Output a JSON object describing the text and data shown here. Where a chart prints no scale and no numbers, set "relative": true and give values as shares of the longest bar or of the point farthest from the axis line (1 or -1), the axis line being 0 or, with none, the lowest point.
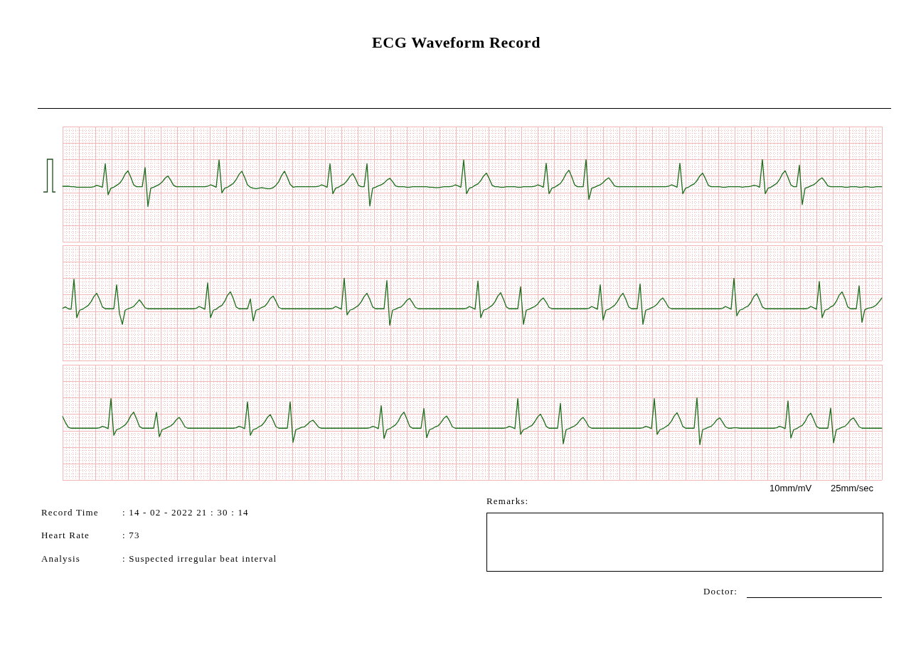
{
  "chart_data": [
    {
      "type": "line",
      "title": "ECG Waveform Record",
      "relative": true,
      "grid": true,
      "categories": [
        null,
        null,
        null,
        null,
        null,
        null,
        null,
        null,
        null,
        null,
        null,
        null,
        null,
        null,
        null,
        null,
        null,
        null,
        null,
        null,
        null,
        null,
        null,
        null,
        null,
        null,
        null,
        null,
        null,
        null,
        null,
        null,
        null,
        null,
        null,
        null,
        null,
        null,
        null,
        null,
        null,
        null,
        null,
        null,
        null,
        null,
        null,
        null,
        null,
        null,
        null,
        null,
        null,
        null,
        null,
        null,
        null,
        null,
        null,
        null,
        null,
        null,
        null,
        null,
        null,
        null,
        null,
        null,
        null,
        null,
        null,
        null,
        null,
        null,
        null,
        null,
        null,
        null,
        null,
        null,
        null,
        null,
        null,
        null,
        null,
        null,
        null,
        null,
        null,
        null,
        null,
        null,
        null,
        null,
        null,
        null,
        null,
        null,
        null,
        null,
        null,
        null,
        null,
        null,
        null,
        null,
        null,
        null,
        null,
        null,
        null,
        null,
        null,
        null,
        null,
        null,
        null,
        null,
        null,
        null,
        null,
        null,
        null,
        null,
        null,
        null,
        null,
        null,
        null,
        null,
        null,
        null,
        null,
        null,
        null,
        null,
        null,
        null,
        null,
        null,
        null,
        null,
        null,
        null,
        null,
        null,
        null,
        null,
        null,
        null,
        null,
        null,
        null,
        null,
        null,
        null,
        null,
        null,
        null,
        null,
        null,
        null,
        null,
        null,
        null,
        null,
        null,
        null,
        null,
        null,
        null,
        null,
        null,
        null,
        null,
        null,
        null,
        null,
        null,
        null,
        null,
        null,
        null,
        null,
        null,
        null,
        null,
        null,
        null,
        null,
        null,
        null,
        null,
        null,
        null,
        null,
        null,
        null,
        null,
        null,
        null,
        null,
        null,
        null,
        null,
        null,
        null,
        null,
        null,
        null,
        null,
        null,
        null,
        null,
        null,
        null,
        null,
        null,
        null,
        null,
        null,
        null,
        null,
        null,
        null,
        null,
        null,
        null,
        null,
        null,
        null,
        null,
        null,
        null,
        null,
        null,
        null,
        null,
        null,
        null,
        null,
        null,
        null,
        null,
        null,
        null,
        null,
        null,
        null,
        null,
        null,
        null,
        null,
        null,
        null,
        null,
        null,
        null,
        null,
        null,
        null,
        null,
        null,
        null,
        null,
        null,
        null,
        null,
        null,
        null,
        null,
        null,
        null,
        null,
        null,
        null,
        null,
        null,
        null,
        null,
        null,
        null,
        null,
        null,
        null,
        null,
        null,
        null,
        null
      ],
      "series": [
        {
          "color": "#1b6e1b",
          "values": [
            0.43,
            0.43,
            0.43,
            0.42,
            0.42,
            0.41,
            0.41,
            0.41,
            0.41,
            0.41,
            0.41,
            0.42,
            0.45,
            0.43,
            0.41,
            0.91,
            0.25,
            0.39,
            0.41,
            0.45,
            0.49,
            0.57,
            0.69,
            0.76,
            0.62,
            0.46,
            0.42,
            0.42,
            0.42,
            0.83,
            0.0,
            0.39,
            0.41,
            0.44,
            0.47,
            0.52,
            0.6,
            0.65,
            0.56,
            0.45,
            0.42,
            0.42,
            0.42,
            0.42,
            0.42,
            0.42,
            0.42,
            0.42,
            0.42,
            0.42,
            0.42,
            0.43,
            0.46,
            0.44,
            0.41,
            0.99,
            0.29,
            0.39,
            0.41,
            0.45,
            0.49,
            0.57,
            0.68,
            0.75,
            0.62,
            0.46,
            0.41,
            0.39,
            0.38,
            0.39,
            0.4,
            0.39,
            0.38,
            0.38,
            0.4,
            0.45,
            0.53,
            0.66,
            0.75,
            0.62,
            0.47,
            0.41,
            0.42,
            0.42,
            0.42,
            0.42,
            0.42,
            0.42,
            0.42,
            0.42,
            0.43,
            0.46,
            0.44,
            0.41,
            0.91,
            0.27,
            0.39,
            0.41,
            0.45,
            0.48,
            0.55,
            0.64,
            0.7,
            0.59,
            0.45,
            0.42,
            0.42,
            0.91,
            0.01,
            0.39,
            0.41,
            0.44,
            0.46,
            0.5,
            0.56,
            0.6,
            0.53,
            0.44,
            0.42,
            0.42,
            0.42,
            0.41,
            0.41,
            0.42,
            0.42,
            0.42,
            0.42,
            0.42,
            0.42,
            0.41,
            0.41,
            0.4,
            0.4,
            0.41,
            0.42,
            0.42,
            0.42,
            0.43,
            0.46,
            0.44,
            0.41,
            0.99,
            0.27,
            0.39,
            0.41,
            0.45,
            0.48,
            0.55,
            0.65,
            0.71,
            0.59,
            0.45,
            0.42,
            0.42,
            0.41,
            0.41,
            0.42,
            0.42,
            0.42,
            0.42,
            0.41,
            0.41,
            0.42,
            0.42,
            0.42,
            0.42,
            0.43,
            0.46,
            0.44,
            0.41,
            0.92,
            0.27,
            0.39,
            0.41,
            0.45,
            0.49,
            0.58,
            0.7,
            0.77,
            0.63,
            0.46,
            0.42,
            0.42,
            0.42,
            1.0,
            0.15,
            0.39,
            0.41,
            0.44,
            0.46,
            0.51,
            0.57,
            0.61,
            0.53,
            0.44,
            0.42,
            0.42,
            0.42,
            0.42,
            0.42,
            0.42,
            0.42,
            0.42,
            0.42,
            0.42,
            0.42,
            0.42,
            0.42,
            0.42,
            0.42,
            0.42,
            0.42,
            0.42,
            0.43,
            0.46,
            0.44,
            0.41,
            0.92,
            0.27,
            0.39,
            0.41,
            0.45,
            0.48,
            0.55,
            0.65,
            0.71,
            0.59,
            0.45,
            0.42,
            0.42,
            0.42,
            0.42,
            0.41,
            0.41,
            0.42,
            0.42,
            0.42,
            0.42,
            0.42,
            0.41,
            0.42,
            0.42,
            0.43,
            0.45,
            0.44,
            0.41,
            1.0,
            0.27,
            0.39,
            0.41,
            0.45,
            0.49,
            0.57,
            0.69,
            0.76,
            0.62,
            0.46,
            0.42,
            0.42,
            0.88,
            0.04,
            0.39,
            0.41,
            0.44,
            0.46,
            0.51,
            0.57,
            0.61,
            0.53,
            0.44,
            0.42,
            0.42,
            0.42,
            0.42,
            0.42,
            0.41,
            0.41,
            0.42,
            0.42,
            0.42,
            0.41,
            0.41,
            0.42,
            0.42,
            0.41,
            0.41,
            0.42,
            0.42,
            0.42
          ]
        }
      ]
    },
    {
      "type": "line",
      "relative": true,
      "grid": true,
      "categories": [
        null,
        null,
        null,
        null,
        null,
        null,
        null,
        null,
        null,
        null,
        null,
        null,
        null,
        null,
        null,
        null,
        null,
        null,
        null,
        null,
        null,
        null,
        null,
        null,
        null,
        null,
        null,
        null,
        null,
        null,
        null,
        null,
        null,
        null,
        null,
        null,
        null,
        null,
        null,
        null,
        null,
        null,
        null,
        null,
        null,
        null,
        null,
        null,
        null,
        null,
        null,
        null,
        null,
        null,
        null,
        null,
        null,
        null,
        null,
        null,
        null,
        null,
        null,
        null,
        null,
        null,
        null,
        null,
        null,
        null,
        null,
        null,
        null,
        null,
        null,
        null,
        null,
        null,
        null,
        null,
        null,
        null,
        null,
        null,
        null,
        null,
        null,
        null,
        null,
        null,
        null,
        null,
        null,
        null,
        null,
        null,
        null,
        null,
        null,
        null,
        null,
        null,
        null,
        null,
        null,
        null,
        null,
        null,
        null,
        null,
        null,
        null,
        null,
        null,
        null,
        null,
        null,
        null,
        null,
        null,
        null,
        null,
        null,
        null,
        null,
        null,
        null,
        null,
        null,
        null,
        null,
        null,
        null,
        null,
        null,
        null,
        null,
        null,
        null,
        null,
        null,
        null,
        null,
        null,
        null,
        null,
        null,
        null,
        null,
        null,
        null,
        null,
        null,
        null,
        null,
        null,
        null,
        null,
        null,
        null,
        null,
        null,
        null,
        null,
        null,
        null,
        null,
        null,
        null,
        null,
        null,
        null,
        null,
        null,
        null,
        null,
        null,
        null,
        null,
        null,
        null,
        null,
        null,
        null,
        null,
        null,
        null,
        null,
        null,
        null,
        null,
        null,
        null,
        null,
        null,
        null,
        null,
        null,
        null,
        null,
        null,
        null,
        null,
        null,
        null,
        null,
        null,
        null,
        null,
        null,
        null,
        null,
        null,
        null,
        null,
        null,
        null,
        null,
        null,
        null,
        null,
        null,
        null,
        null,
        null,
        null,
        null,
        null,
        null,
        null,
        null,
        null,
        null,
        null,
        null,
        null,
        null,
        null,
        null,
        null,
        null,
        null,
        null,
        null,
        null,
        null,
        null,
        null,
        null,
        null,
        null,
        null,
        null,
        null,
        null,
        null,
        null,
        null,
        null,
        null,
        null,
        null,
        null,
        null,
        null,
        null,
        null,
        null,
        null,
        null,
        null,
        null,
        null,
        null,
        null,
        null,
        null,
        null,
        null,
        null,
        null,
        null,
        null,
        null,
        null,
        null,
        null,
        null,
        null
      ],
      "series": [
        {
          "color": "#1b6e1b",
          "values": [
            0.36,
            0.39,
            0.35,
            0.34,
            0.98,
            0.16,
            0.32,
            0.34,
            0.38,
            0.42,
            0.5,
            0.61,
            0.68,
            0.55,
            0.39,
            0.35,
            0.35,
            0.35,
            0.35,
            0.86,
            0.25,
            0.02,
            0.32,
            0.35,
            0.37,
            0.4,
            0.47,
            0.54,
            0.46,
            0.37,
            0.35,
            0.35,
            0.35,
            0.35,
            0.35,
            0.35,
            0.35,
            0.35,
            0.35,
            0.35,
            0.35,
            0.35,
            0.35,
            0.35,
            0.35,
            0.35,
            0.35,
            0.36,
            0.4,
            0.37,
            0.34,
            0.9,
            0.16,
            0.32,
            0.34,
            0.39,
            0.42,
            0.51,
            0.64,
            0.71,
            0.57,
            0.39,
            0.35,
            0.35,
            0.35,
            0.35,
            0.56,
            0.09,
            0.32,
            0.34,
            0.38,
            0.4,
            0.47,
            0.57,
            0.62,
            0.51,
            0.38,
            0.35,
            0.35,
            0.35,
            0.35,
            0.35,
            0.35,
            0.35,
            0.35,
            0.35,
            0.35,
            0.35,
            0.35,
            0.35,
            0.35,
            0.35,
            0.35,
            0.35,
            0.35,
            0.36,
            0.4,
            0.37,
            0.34,
            1.0,
            0.22,
            0.32,
            0.34,
            0.38,
            0.42,
            0.5,
            0.61,
            0.68,
            0.55,
            0.39,
            0.35,
            0.35,
            0.35,
            0.35,
            0.95,
            0.0,
            0.32,
            0.34,
            0.37,
            0.39,
            0.45,
            0.53,
            0.57,
            0.48,
            0.38,
            0.35,
            0.35,
            0.35,
            0.35,
            0.35,
            0.35,
            0.35,
            0.35,
            0.35,
            0.35,
            0.35,
            0.35,
            0.35,
            0.35,
            0.35,
            0.35,
            0.35,
            0.36,
            0.4,
            0.37,
            0.34,
            0.94,
            0.16,
            0.32,
            0.34,
            0.38,
            0.42,
            0.5,
            0.62,
            0.69,
            0.55,
            0.39,
            0.35,
            0.35,
            0.35,
            0.35,
            0.82,
            0.02,
            0.32,
            0.34,
            0.37,
            0.4,
            0.45,
            0.53,
            0.58,
            0.49,
            0.38,
            0.35,
            0.35,
            0.35,
            0.35,
            0.35,
            0.35,
            0.35,
            0.35,
            0.35,
            0.35,
            0.35,
            0.35,
            0.35,
            0.36,
            0.4,
            0.37,
            0.34,
            0.86,
            0.11,
            0.32,
            0.34,
            0.38,
            0.42,
            0.5,
            0.61,
            0.68,
            0.55,
            0.39,
            0.35,
            0.35,
            0.35,
            0.88,
            0.02,
            0.32,
            0.34,
            0.37,
            0.4,
            0.45,
            0.53,
            0.58,
            0.49,
            0.38,
            0.35,
            0.35,
            0.35,
            0.35,
            0.35,
            0.35,
            0.35,
            0.35,
            0.35,
            0.35,
            0.35,
            0.35,
            0.35,
            0.35,
            0.35,
            0.35,
            0.35,
            0.35,
            0.36,
            0.4,
            0.37,
            0.34,
            1.0,
            0.2,
            0.32,
            0.34,
            0.38,
            0.41,
            0.49,
            0.61,
            0.67,
            0.54,
            0.39,
            0.35,
            0.35,
            0.35,
            0.35,
            0.35,
            0.35,
            0.35,
            0.35,
            0.35,
            0.35,
            0.35,
            0.35,
            0.35,
            0.35,
            0.35,
            0.36,
            0.4,
            0.37,
            0.34,
            0.93,
            0.16,
            0.32,
            0.34,
            0.39,
            0.42,
            0.51,
            0.64,
            0.71,
            0.57,
            0.39,
            0.35,
            0.35,
            0.35,
            0.84,
            0.06,
            0.33,
            0.36,
            0.37,
            0.39,
            0.43,
            0.5,
            0.58
          ]
        }
      ]
    },
    {
      "type": "line",
      "relative": true,
      "grid": true,
      "categories": [
        null,
        null,
        null,
        null,
        null,
        null,
        null,
        null,
        null,
        null,
        null,
        null,
        null,
        null,
        null,
        null,
        null,
        null,
        null,
        null,
        null,
        null,
        null,
        null,
        null,
        null,
        null,
        null,
        null,
        null,
        null,
        null,
        null,
        null,
        null,
        null,
        null,
        null,
        null,
        null,
        null,
        null,
        null,
        null,
        null,
        null,
        null,
        null,
        null,
        null,
        null,
        null,
        null,
        null,
        null,
        null,
        null,
        null,
        null,
        null,
        null,
        null,
        null,
        null,
        null,
        null,
        null,
        null,
        null,
        null,
        null,
        null,
        null,
        null,
        null,
        null,
        null,
        null,
        null,
        null,
        null,
        null,
        null,
        null,
        null,
        null,
        null,
        null,
        null,
        null,
        null,
        null,
        null,
        null,
        null,
        null,
        null,
        null,
        null,
        null,
        null,
        null,
        null,
        null,
        null,
        null,
        null,
        null,
        null,
        null,
        null,
        null,
        null,
        null,
        null,
        null,
        null,
        null,
        null,
        null,
        null,
        null,
        null,
        null,
        null,
        null,
        null,
        null,
        null,
        null,
        null,
        null,
        null,
        null,
        null,
        null,
        null,
        null,
        null,
        null,
        null,
        null,
        null,
        null,
        null,
        null,
        null,
        null,
        null,
        null,
        null,
        null,
        null,
        null,
        null,
        null,
        null,
        null,
        null,
        null,
        null,
        null,
        null,
        null,
        null,
        null,
        null,
        null,
        null,
        null,
        null,
        null,
        null,
        null,
        null,
        null,
        null,
        null,
        null,
        null,
        null,
        null,
        null,
        null,
        null,
        null,
        null,
        null,
        null,
        null,
        null,
        null,
        null,
        null,
        null,
        null,
        null,
        null,
        null,
        null,
        null,
        null,
        null,
        null,
        null,
        null,
        null,
        null,
        null,
        null,
        null,
        null,
        null,
        null,
        null,
        null,
        null,
        null,
        null,
        null,
        null,
        null,
        null,
        null,
        null,
        null,
        null,
        null,
        null,
        null,
        null,
        null,
        null,
        null,
        null,
        null,
        null,
        null,
        null,
        null,
        null,
        null,
        null,
        null,
        null,
        null,
        null,
        null,
        null,
        null,
        null,
        null,
        null,
        null,
        null,
        null,
        null,
        null,
        null,
        null,
        null,
        null,
        null,
        null,
        null,
        null,
        null,
        null,
        null,
        null,
        null,
        null,
        null,
        null,
        null,
        null,
        null,
        null,
        null,
        null,
        null,
        null,
        null,
        null,
        null,
        null,
        null,
        null,
        null
      ],
      "series": [
        {
          "color": "#1b6e1b",
          "values": [
            0.6,
            0.47,
            0.37,
            0.35,
            0.35,
            0.35,
            0.35,
            0.35,
            0.35,
            0.35,
            0.35,
            0.35,
            0.35,
            0.36,
            0.39,
            0.37,
            0.34,
            0.98,
            0.2,
            0.32,
            0.34,
            0.38,
            0.42,
            0.5,
            0.62,
            0.69,
            0.55,
            0.39,
            0.35,
            0.35,
            0.35,
            0.35,
            0.35,
            0.69,
            0.17,
            0.32,
            0.34,
            0.37,
            0.4,
            0.45,
            0.53,
            0.58,
            0.49,
            0.38,
            0.35,
            0.35,
            0.35,
            0.35,
            0.35,
            0.35,
            0.35,
            0.35,
            0.35,
            0.35,
            0.35,
            0.35,
            0.35,
            0.35,
            0.35,
            0.35,
            0.35,
            0.36,
            0.39,
            0.37,
            0.34,
            0.91,
            0.2,
            0.32,
            0.34,
            0.38,
            0.41,
            0.48,
            0.58,
            0.64,
            0.52,
            0.38,
            0.35,
            0.35,
            0.35,
            0.35,
            0.91,
            0.05,
            0.32,
            0.34,
            0.37,
            0.38,
            0.43,
            0.49,
            0.52,
            0.45,
            0.37,
            0.35,
            0.35,
            0.35,
            0.35,
            0.35,
            0.35,
            0.35,
            0.35,
            0.35,
            0.35,
            0.35,
            0.35,
            0.35,
            0.35,
            0.35,
            0.35,
            0.35,
            0.36,
            0.39,
            0.37,
            0.34,
            0.83,
            0.13,
            0.32,
            0.34,
            0.38,
            0.42,
            0.5,
            0.62,
            0.69,
            0.55,
            0.39,
            0.35,
            0.35,
            0.35,
            0.35,
            0.77,
            0.15,
            0.32,
            0.34,
            0.38,
            0.4,
            0.47,
            0.56,
            0.61,
            0.51,
            0.38,
            0.35,
            0.35,
            0.35,
            0.35,
            0.35,
            0.35,
            0.35,
            0.35,
            0.35,
            0.35,
            0.35,
            0.35,
            0.35,
            0.35,
            0.35,
            0.35,
            0.35,
            0.35,
            0.36,
            0.39,
            0.37,
            0.34,
            0.98,
            0.22,
            0.32,
            0.34,
            0.38,
            0.41,
            0.49,
            0.59,
            0.65,
            0.53,
            0.39,
            0.35,
            0.35,
            0.35,
            0.35,
            0.88,
            0.02,
            0.32,
            0.34,
            0.37,
            0.4,
            0.45,
            0.53,
            0.58,
            0.49,
            0.38,
            0.35,
            0.35,
            0.35,
            0.35,
            0.35,
            0.35,
            0.35,
            0.35,
            0.35,
            0.35,
            0.35,
            0.35,
            0.35,
            0.35,
            0.35,
            0.35,
            0.35,
            0.35,
            0.36,
            0.39,
            0.37,
            0.34,
            0.98,
            0.22,
            0.32,
            0.34,
            0.38,
            0.42,
            0.5,
            0.61,
            0.68,
            0.55,
            0.39,
            0.35,
            0.35,
            0.35,
            0.35,
            1.0,
            0.0,
            0.32,
            0.34,
            0.37,
            0.39,
            0.45,
            0.53,
            0.57,
            0.48,
            0.38,
            0.35,
            0.35,
            0.36,
            0.36,
            0.35,
            0.35,
            0.35,
            0.35,
            0.35,
            0.35,
            0.35,
            0.35,
            0.35,
            0.35,
            0.35,
            0.35,
            0.35,
            0.36,
            0.39,
            0.37,
            0.34,
            0.93,
            0.14,
            0.32,
            0.34,
            0.38,
            0.41,
            0.49,
            0.61,
            0.67,
            0.54,
            0.39,
            0.35,
            0.35,
            0.35,
            0.35,
            0.78,
            0.04,
            0.32,
            0.34,
            0.37,
            0.39,
            0.45,
            0.53,
            0.57,
            0.48,
            0.38,
            0.35,
            0.35,
            0.35,
            0.35,
            0.35,
            0.35,
            0.35,
            0.35
          ]
        }
      ],
      "annotations": [
        "10mm/mV",
        "25mm/sec",
        "Record Time",
        ": 14 - 02 - 2022   21 : 30 : 14",
        "Heart Rate",
        ": 73",
        "Analysis",
        ": Suspected irregular beat interval",
        "Remarks:",
        "Doctor:"
      ]
    }
  ]
}
